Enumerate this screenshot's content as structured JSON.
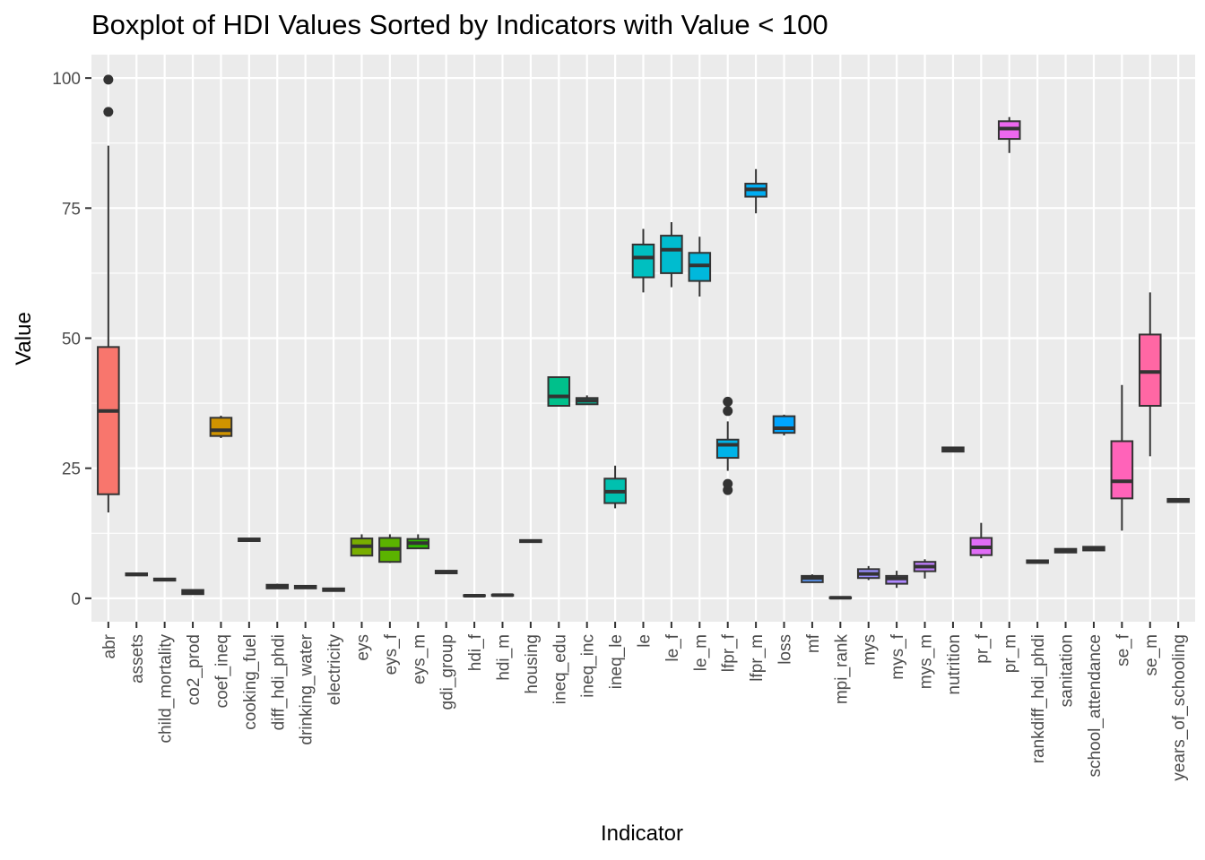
{
  "chart_data": {
    "type": "boxplot",
    "title": "Boxplot of HDI Values Sorted by Indicators with Value < 100",
    "xlabel": "Indicator",
    "ylabel": "Value",
    "ylim": [
      -4.5,
      104.5
    ],
    "yticks": [
      0,
      25,
      50,
      75,
      100
    ],
    "grid": true,
    "legend": "none",
    "boxes": [
      {
        "category": "abr",
        "min": 16.5,
        "q1": 20,
        "median": 36,
        "q3": 48.3,
        "max": 87,
        "outliers": [
          93.5,
          99.7
        ],
        "color": "#F8766D"
      },
      {
        "category": "assets",
        "min": 4.4,
        "q1": 4.4,
        "median": 4.6,
        "q3": 4.8,
        "max": 4.8,
        "outliers": [],
        "color": "#F07D52"
      },
      {
        "category": "child_mortality",
        "min": 3.4,
        "q1": 3.4,
        "median": 3.6,
        "q3": 3.8,
        "max": 3.8,
        "outliers": [],
        "color": "#E7851E"
      },
      {
        "category": "co2_prod",
        "min": 0.8,
        "q1": 0.8,
        "median": 1.2,
        "q3": 1.6,
        "max": 1.6,
        "outliers": [],
        "color": "#DC8D00"
      },
      {
        "category": "coef_ineq",
        "min": 30.8,
        "q1": 31.2,
        "median": 32.3,
        "q3": 34.7,
        "max": 35.1,
        "outliers": [],
        "color": "#D09400"
      },
      {
        "category": "cooking_fuel",
        "min": 11.0,
        "q1": 11.0,
        "median": 11.3,
        "q3": 11.5,
        "max": 11.5,
        "outliers": [],
        "color": "#C39B00"
      },
      {
        "category": "diff_hdi_phdi",
        "min": 1.8,
        "q1": 1.9,
        "median": 2.2,
        "q3": 2.6,
        "max": 2.8,
        "outliers": [],
        "color": "#B4A000"
      },
      {
        "category": "drinking_water",
        "min": 1.9,
        "q1": 1.9,
        "median": 2.2,
        "q3": 2.4,
        "max": 2.4,
        "outliers": [],
        "color": "#A3A500"
      },
      {
        "category": "electricity",
        "min": 1.4,
        "q1": 1.4,
        "median": 1.7,
        "q3": 1.9,
        "max": 1.9,
        "outliers": [],
        "color": "#8FAA00"
      },
      {
        "category": "eys",
        "min": 8.2,
        "q1": 8.2,
        "median": 10.0,
        "q3": 11.5,
        "max": 12.3,
        "outliers": [],
        "color": "#79AE00"
      },
      {
        "category": "eys_f",
        "min": 6.8,
        "q1": 7.0,
        "median": 9.5,
        "q3": 11.6,
        "max": 12.3,
        "outliers": [],
        "color": "#5BB300"
      },
      {
        "category": "eys_m",
        "min": 9.6,
        "q1": 9.6,
        "median": 10.6,
        "q3": 11.4,
        "max": 12.3,
        "outliers": [],
        "color": "#2CB600"
      },
      {
        "category": "gdi_group",
        "min": 4.8,
        "q1": 4.8,
        "median": 5.0,
        "q3": 5.3,
        "max": 5.3,
        "outliers": [],
        "color": "#00B81F"
      },
      {
        "category": "hdi_f",
        "min": 0.4,
        "q1": 0.4,
        "median": 0.5,
        "q3": 0.6,
        "max": 0.6,
        "outliers": [],
        "color": "#00BB45"
      },
      {
        "category": "hdi_m",
        "min": 0.5,
        "q1": 0.5,
        "median": 0.6,
        "q3": 0.7,
        "max": 0.7,
        "outliers": [],
        "color": "#00BD5F"
      },
      {
        "category": "housing",
        "min": 10.8,
        "q1": 10.8,
        "median": 11.0,
        "q3": 11.2,
        "max": 11.2,
        "outliers": [],
        "color": "#00BF76"
      },
      {
        "category": "ineq_edu",
        "min": 37.0,
        "q1": 37.0,
        "median": 38.8,
        "q3": 42.5,
        "max": 42.5,
        "outliers": [],
        "color": "#00C08B"
      },
      {
        "category": "ineq_inc",
        "min": 37.3,
        "q1": 37.3,
        "median": 38.0,
        "q3": 38.5,
        "max": 39.0,
        "outliers": [],
        "color": "#00C19E"
      },
      {
        "category": "ineq_le",
        "min": 17.3,
        "q1": 18.3,
        "median": 20.5,
        "q3": 23.0,
        "max": 25.5,
        "outliers": [],
        "color": "#00C0AF"
      },
      {
        "category": "le",
        "min": 58.8,
        "q1": 61.7,
        "median": 65.5,
        "q3": 68.0,
        "max": 71.0,
        "outliers": [],
        "color": "#00BFC0"
      },
      {
        "category": "le_f",
        "min": 59.8,
        "q1": 62.5,
        "median": 67.0,
        "q3": 69.7,
        "max": 72.3,
        "outliers": [],
        "color": "#00BCCF"
      },
      {
        "category": "le_m",
        "min": 58.0,
        "q1": 61.0,
        "median": 64.0,
        "q3": 66.4,
        "max": 69.5,
        "outliers": [],
        "color": "#00B8DC"
      },
      {
        "category": "lfpr_f",
        "min": 24.5,
        "q1": 27.0,
        "median": 29.5,
        "q3": 30.5,
        "max": 34.0,
        "outliers": [
          20.8,
          22.0,
          36.0,
          37.8
        ],
        "color": "#00B3E8"
      },
      {
        "category": "lfpr_m",
        "min": 74.0,
        "q1": 77.2,
        "median": 78.6,
        "q3": 79.7,
        "max": 82.5,
        "outliers": [],
        "color": "#00ADF2"
      },
      {
        "category": "loss",
        "min": 31.3,
        "q1": 31.8,
        "median": 32.7,
        "q3": 35.0,
        "max": 35.3,
        "outliers": [],
        "color": "#00A5FF"
      },
      {
        "category": "mf",
        "min": 3.1,
        "q1": 3.1,
        "median": 3.9,
        "q3": 4.3,
        "max": 4.6,
        "outliers": [],
        "color": "#5C9DFF"
      },
      {
        "category": "mpi_rank",
        "min": 0.0,
        "q1": 0.0,
        "median": 0.1,
        "q3": 0.2,
        "max": 0.2,
        "outliers": [],
        "color": "#7F96FF"
      },
      {
        "category": "mys",
        "min": 3.5,
        "q1": 3.9,
        "median": 4.7,
        "q3": 5.6,
        "max": 6.2,
        "outliers": [],
        "color": "#9A8FFF"
      },
      {
        "category": "mys_f",
        "min": 2.0,
        "q1": 2.8,
        "median": 3.8,
        "q3": 4.3,
        "max": 5.3,
        "outliers": [],
        "color": "#AF88FF"
      },
      {
        "category": "mys_m",
        "min": 3.8,
        "q1": 5.2,
        "median": 6.1,
        "q3": 7.0,
        "max": 7.5,
        "outliers": [],
        "color": "#C17FFF"
      },
      {
        "category": "nutrition",
        "min": 28.2,
        "q1": 28.2,
        "median": 28.6,
        "q3": 29.0,
        "max": 29.0,
        "outliers": [],
        "color": "#D276FF"
      },
      {
        "category": "pr_f",
        "min": 7.7,
        "q1": 8.3,
        "median": 9.8,
        "q3": 11.6,
        "max": 14.5,
        "outliers": [],
        "color": "#E06DF6"
      },
      {
        "category": "pr_m",
        "min": 85.6,
        "q1": 88.3,
        "median": 90.3,
        "q3": 91.7,
        "max": 92.5,
        "outliers": [],
        "color": "#EC68EE"
      },
      {
        "category": "rankdiff_hdi_phdi",
        "min": 6.8,
        "q1": 6.8,
        "median": 7.0,
        "q3": 7.3,
        "max": 7.3,
        "outliers": [],
        "color": "#F564E3"
      },
      {
        "category": "sanitation",
        "min": 8.8,
        "q1": 8.8,
        "median": 9.2,
        "q3": 9.5,
        "max": 9.5,
        "outliers": [],
        "color": "#FB61D7"
      },
      {
        "category": "school_attendance",
        "min": 9.2,
        "q1": 9.2,
        "median": 9.5,
        "q3": 9.9,
        "max": 9.9,
        "outliers": [],
        "color": "#FF61C9"
      },
      {
        "category": "se_f",
        "min": 13.0,
        "q1": 19.2,
        "median": 22.5,
        "q3": 30.2,
        "max": 41.0,
        "outliers": [],
        "color": "#FF63B9"
      },
      {
        "category": "se_m",
        "min": 27.3,
        "q1": 37.0,
        "median": 43.5,
        "q3": 50.7,
        "max": 58.8,
        "outliers": [],
        "color": "#FF67A4"
      },
      {
        "category": "years_of_schooling",
        "min": 18.5,
        "q1": 18.5,
        "median": 18.8,
        "q3": 19.1,
        "max": 19.1,
        "outliers": [],
        "color": "#FF6C90"
      }
    ]
  }
}
